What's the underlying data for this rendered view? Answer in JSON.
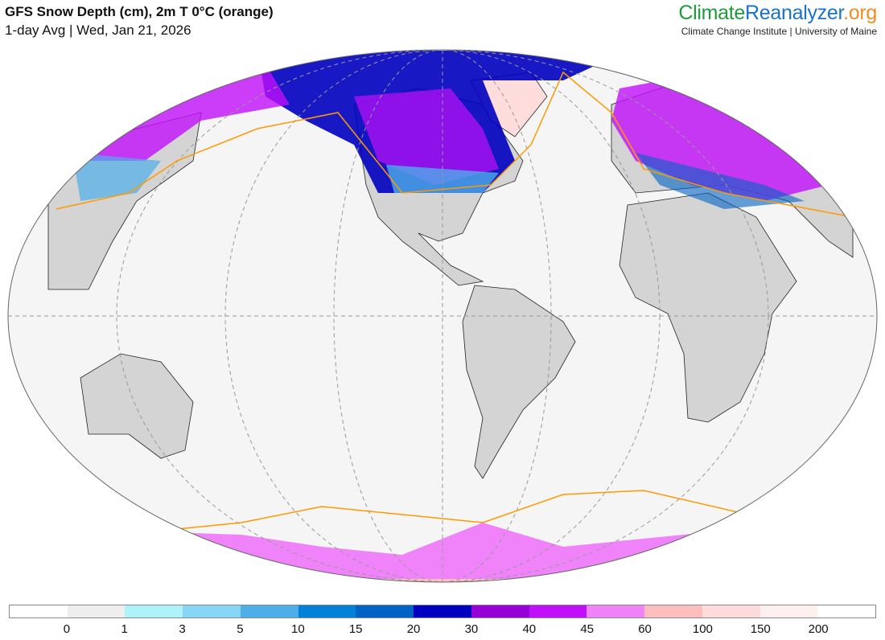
{
  "header": {
    "title": "GFS Snow Depth (cm), 2m T 0°C (orange)",
    "subtitle": "1-day Avg | Wed, Jan 21, 2026"
  },
  "logo": {
    "part1": "Climate",
    "part2": "Reanalyzer",
    ".org": ".org",
    "institution": "Climate Change Institute | University of Maine"
  },
  "colorbar": {
    "labels": [
      "0",
      "1",
      "3",
      "5",
      "10",
      "15",
      "20",
      "30",
      "40",
      "45",
      "60",
      "100",
      "150",
      "200"
    ],
    "colors": [
      "#ffffff",
      "#eeeeee",
      "#aef2fa",
      "#88d6f6",
      "#4eaeea",
      "#0082d8",
      "#0062c4",
      "#0000c0",
      "#9600d6",
      "#c20ffa",
      "#f082fa",
      "#ffbebe",
      "#ffdcdc",
      "#fff0f0",
      "#ffffff"
    ]
  },
  "map_colors": {
    "ocean": "#f5f5f5",
    "land": "#d4d4d4",
    "isotherm": "#ff9900"
  }
}
